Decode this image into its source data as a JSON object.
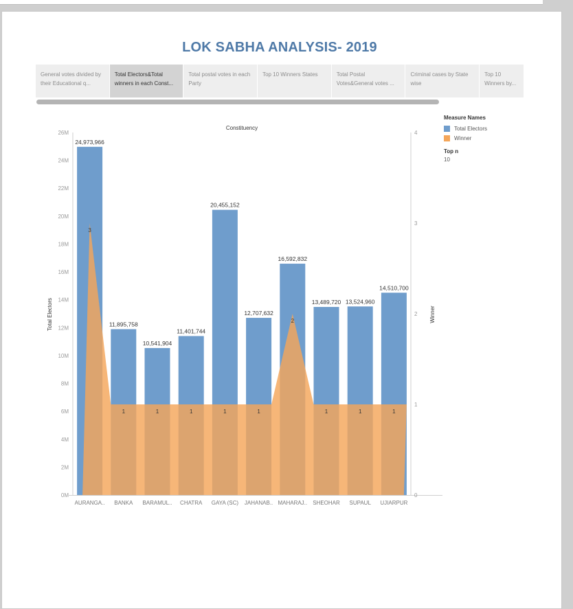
{
  "dashboard": {
    "title": "LOK SABHA ANALYSIS- 2019",
    "tabs": [
      "General votes divided by their Educational q...",
      "Total Electors&Total winners in each Const...",
      "Total postal votes in each Party",
      "Top 10 Winners States",
      "Total Postal Votes&General votes ...",
      "Criminal cases by State wise",
      "Top 10 Winners by..."
    ],
    "active_tab": 1
  },
  "legend": {
    "header": "Measure Names",
    "items": [
      "Total Electors",
      "Winner"
    ],
    "filter_label": "Top n",
    "filter_value": "10"
  },
  "colors": {
    "electors": "#6f9dcc",
    "winner": "#f4a65a",
    "overlap": "#c9a27f",
    "axis": "#999999"
  },
  "chart_data": {
    "type": "bar",
    "title": "Constituency",
    "ylabel": "Total Electors",
    "y2label": "Winner",
    "categories": [
      "AURANGA..",
      "BANKA",
      "BARAMUL..",
      "CHATRA",
      "GAYA (SC)",
      "JAHANAB..",
      "MAHARAJ..",
      "SHEOHAR",
      "SUPAUL",
      "UJIARPUR"
    ],
    "series": [
      {
        "name": "Total Electors",
        "type": "bar",
        "axis": "left",
        "values": [
          24973966,
          11895758,
          10541904,
          11401744,
          20455152,
          12707632,
          16592832,
          13489720,
          13524960,
          14510700
        ],
        "labels": [
          "24,973,966",
          "11,895,758",
          "10,541,904",
          "11,401,744",
          "20,455,152",
          "12,707,632",
          "16,592,832",
          "13,489,720",
          "13,524,960",
          "14,510,700"
        ]
      },
      {
        "name": "Winner",
        "type": "area",
        "axis": "right",
        "values": [
          3,
          1,
          1,
          1,
          1,
          1,
          2,
          1,
          1,
          1
        ],
        "labels": [
          "3",
          "1",
          "1",
          "1",
          "1",
          "1",
          "2",
          "1",
          "1",
          "1"
        ]
      }
    ],
    "ylim": [
      0,
      26000000
    ],
    "yticks": [
      0,
      2000000,
      4000000,
      6000000,
      8000000,
      10000000,
      12000000,
      14000000,
      16000000,
      18000000,
      20000000,
      22000000,
      24000000,
      26000000
    ],
    "ytick_labels": [
      "0M",
      "2M",
      "4M",
      "6M",
      "8M",
      "10M",
      "12M",
      "14M",
      "16M",
      "18M",
      "20M",
      "22M",
      "24M",
      "26M"
    ],
    "y2lim": [
      0,
      4
    ],
    "y2ticks": [
      0,
      1,
      2,
      3,
      4
    ],
    "y2tick_labels": [
      "0",
      "1",
      "2",
      "3",
      "4"
    ],
    "grid": false,
    "legend": "right"
  }
}
